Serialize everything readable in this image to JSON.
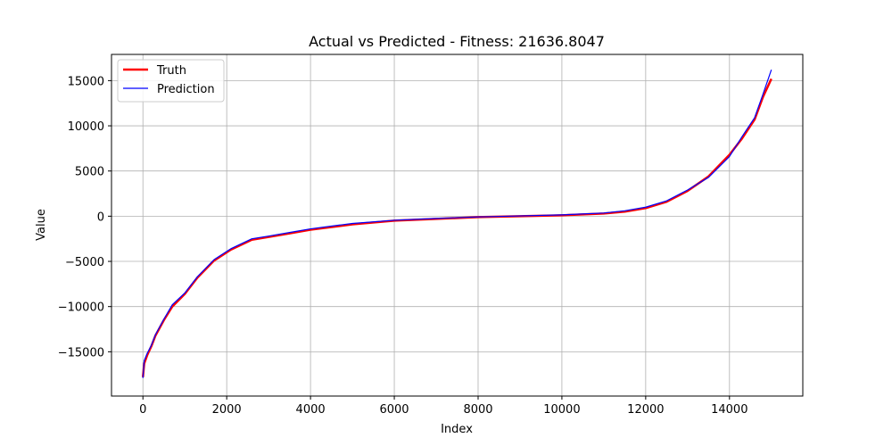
{
  "chart_data": {
    "type": "line",
    "title": "Actual vs Predicted - Fitness: 21636.8047",
    "xlabel": "Index",
    "ylabel": "Value",
    "xlim": [
      -750,
      15750
    ],
    "ylim": [
      -19900,
      17900
    ],
    "x_ticks": [
      0,
      2000,
      4000,
      6000,
      8000,
      10000,
      12000,
      14000
    ],
    "x_tick_labels": [
      "0",
      "2000",
      "4000",
      "6000",
      "8000",
      "10000",
      "12000",
      "14000"
    ],
    "y_ticks": [
      -15000,
      -10000,
      -5000,
      0,
      5000,
      10000,
      15000
    ],
    "y_tick_labels": [
      "−15000",
      "−10000",
      "−5000",
      "0",
      "5000",
      "10000",
      "15000"
    ],
    "grid": true,
    "legend_position": "upper-left",
    "series": [
      {
        "name": "Truth",
        "color": "#ff0000",
        "x": [
          0,
          30,
          100,
          200,
          300,
          500,
          700,
          1000,
          1300,
          1700,
          2100,
          2600,
          3000,
          3500,
          4000,
          5000,
          6000,
          7000,
          8000,
          9000,
          10000,
          11000,
          11500,
          12000,
          12500,
          13000,
          13500,
          14000,
          14300,
          14600,
          14800,
          15000
        ],
        "y": [
          -17800,
          -16300,
          -15400,
          -14400,
          -13200,
          -11500,
          -10000,
          -8600,
          -6800,
          -4900,
          -3700,
          -2600,
          -2300,
          -1900,
          -1500,
          -900,
          -500,
          -300,
          -100,
          0,
          100,
          300,
          500,
          900,
          1600,
          2800,
          4400,
          6800,
          8600,
          10700,
          13200,
          15200
        ]
      },
      {
        "name": "Prediction",
        "color": "#0000ff",
        "x": [
          0,
          30,
          100,
          200,
          300,
          500,
          700,
          1000,
          1300,
          1700,
          2100,
          2600,
          3000,
          3500,
          4000,
          5000,
          6000,
          7000,
          8000,
          9000,
          10000,
          11000,
          11500,
          12000,
          12500,
          13000,
          13500,
          14000,
          14300,
          14600,
          14800,
          15000
        ],
        "y": [
          -17900,
          -16000,
          -15200,
          -14300,
          -13100,
          -11400,
          -9800,
          -8500,
          -6700,
          -4800,
          -3600,
          -2500,
          -2200,
          -1800,
          -1400,
          -800,
          -450,
          -250,
          -80,
          30,
          150,
          350,
          600,
          1000,
          1700,
          2900,
          4300,
          6600,
          8800,
          10900,
          13500,
          16200
        ]
      }
    ]
  }
}
